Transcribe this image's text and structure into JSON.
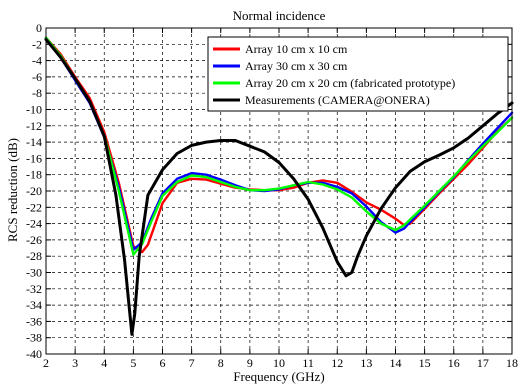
{
  "chart_data": {
    "type": "line",
    "title": "Normal incidence",
    "xlabel": "Frequency (GHz)",
    "ylabel": "RCS reduction (dB)",
    "xlim": [
      2,
      18
    ],
    "ylim": [
      -40,
      0
    ],
    "xticks": [
      2,
      3,
      4,
      5,
      6,
      7,
      8,
      9,
      10,
      11,
      12,
      13,
      14,
      15,
      16,
      17,
      18
    ],
    "yticks": [
      0,
      -2,
      -4,
      -6,
      -8,
      -10,
      -12,
      -14,
      -16,
      -18,
      -20,
      -22,
      -24,
      -26,
      -28,
      -30,
      -32,
      -34,
      -36,
      -38,
      -40
    ],
    "grid": true,
    "legend_position": "top-right",
    "series": [
      {
        "name": "Array 10 cm x 10 cm",
        "color": "#ff0000",
        "x": [
          2,
          2.5,
          3,
          3.5,
          4,
          4.5,
          5,
          5.3,
          5.5,
          6,
          6.5,
          7,
          7.5,
          8,
          8.5,
          9,
          9.5,
          10,
          10.5,
          11,
          11.5,
          12,
          12.5,
          13,
          13.5,
          14,
          14.3,
          14.5,
          15,
          15.5,
          16,
          16.5,
          17,
          17.5,
          18
        ],
        "y": [
          -1.2,
          -3.2,
          -6,
          -8.6,
          -12.8,
          -19,
          -26.8,
          -27.5,
          -26.6,
          -21.5,
          -19,
          -18.5,
          -18.6,
          -19.1,
          -19.6,
          -19.8,
          -19.9,
          -19.9,
          -19.6,
          -19,
          -18.7,
          -19,
          -20.1,
          -21.4,
          -22.3,
          -23.4,
          -24.2,
          -24,
          -22.2,
          -20.3,
          -18.5,
          -16.7,
          -14.7,
          -12.7,
          -11
        ]
      },
      {
        "name": "Array 30 cm x 30 cm",
        "color": "#0000ff",
        "x": [
          2,
          2.5,
          3,
          3.5,
          4,
          4.5,
          5,
          5.3,
          5.6,
          6,
          6.5,
          7,
          7.5,
          8,
          8.5,
          9,
          9.5,
          10,
          10.5,
          11,
          11.5,
          12,
          12.5,
          13,
          13.5,
          14,
          14.3,
          14.5,
          15,
          15.5,
          16,
          16.5,
          17,
          17.5,
          18
        ],
        "y": [
          -1.2,
          -3.6,
          -6.4,
          -9.2,
          -13.4,
          -19.5,
          -27.2,
          -26.3,
          -23.5,
          -20.3,
          -18.5,
          -17.8,
          -18,
          -18.6,
          -19.3,
          -19.9,
          -20,
          -19.8,
          -19.3,
          -19,
          -19,
          -19.5,
          -20.3,
          -21.9,
          -23.8,
          -25.1,
          -24.6,
          -23.8,
          -22,
          -20.1,
          -18.3,
          -16.2,
          -14.2,
          -12.3,
          -10.4
        ]
      },
      {
        "name": "Array 20 cm x 20 cm (fabricated prototype)",
        "color": "#00ff00",
        "x": [
          2,
          2.5,
          3,
          3.5,
          4,
          4.5,
          5,
          5.3,
          5.6,
          6,
          6.5,
          7,
          7.5,
          8,
          8.5,
          9,
          9.5,
          10,
          10.5,
          11,
          11.5,
          12,
          12.5,
          13,
          13.5,
          14,
          14.3,
          14.5,
          15,
          15.5,
          16,
          16.5,
          17,
          17.5,
          18
        ],
        "y": [
          -1.2,
          -3.4,
          -6.2,
          -9,
          -13.2,
          -20,
          -27.8,
          -26.5,
          -23.9,
          -20.6,
          -18.9,
          -18.1,
          -18.3,
          -18.9,
          -19.5,
          -19.9,
          -19.9,
          -19.7,
          -19.3,
          -18.9,
          -19.2,
          -19.8,
          -20.8,
          -22.5,
          -24,
          -24.8,
          -24.2,
          -23.5,
          -21.8,
          -20,
          -18.2,
          -16.3,
          -14.5,
          -12.8,
          -11
        ]
      },
      {
        "name": "Measurements (CAMERA@ONERA)",
        "color": "#000000",
        "x": [
          2,
          2.5,
          3,
          3.5,
          4,
          4.4,
          4.7,
          4.85,
          4.95,
          5.05,
          5.2,
          5.5,
          6,
          6.5,
          7,
          7.5,
          8,
          8.5,
          9,
          9.5,
          10,
          10.5,
          11,
          11.5,
          12,
          12.3,
          12.5,
          12.7,
          13,
          13.5,
          14,
          14.5,
          15,
          15.5,
          16,
          16.5,
          17,
          17.5,
          18
        ],
        "y": [
          -1.4,
          -3.6,
          -6.2,
          -9,
          -13.3,
          -20.5,
          -28.5,
          -34,
          -37.6,
          -35,
          -28,
          -20.5,
          -17.4,
          -15.4,
          -14.4,
          -14,
          -13.8,
          -13.8,
          -14.5,
          -15.2,
          -16.5,
          -18.5,
          -21,
          -24.5,
          -28.7,
          -30.4,
          -30,
          -28,
          -25.5,
          -22.2,
          -19.6,
          -17.6,
          -16.4,
          -15.6,
          -14.7,
          -13.5,
          -12,
          -10.5,
          -9.2
        ]
      }
    ]
  }
}
